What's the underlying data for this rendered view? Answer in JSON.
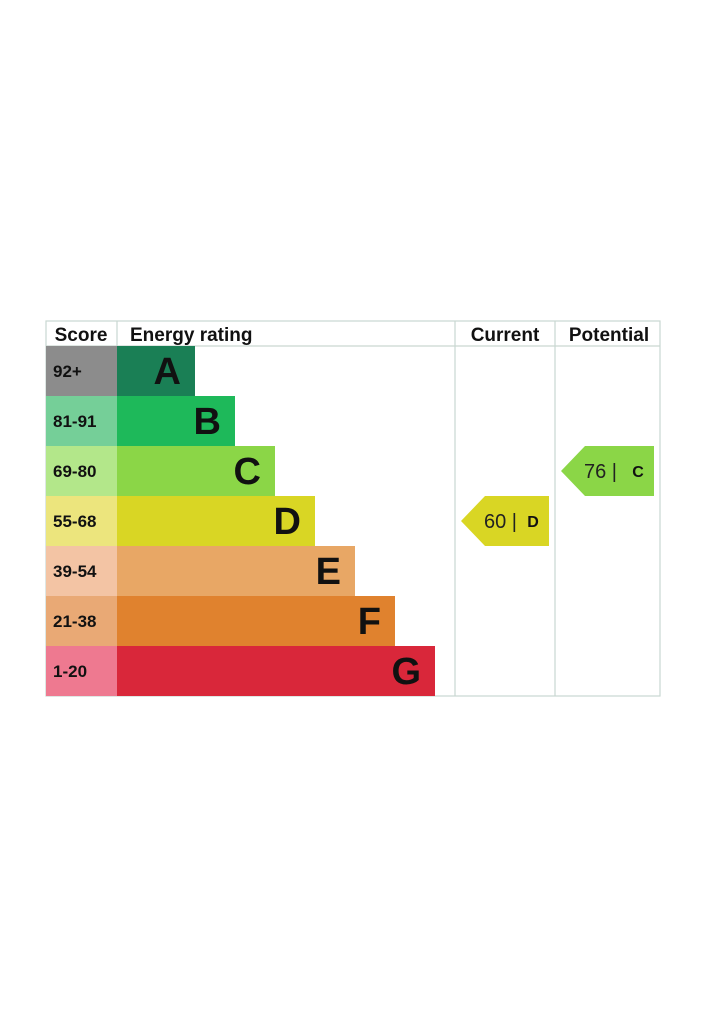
{
  "headers": {
    "score": "Score",
    "rating": "Energy rating",
    "current": "Current",
    "potential": "Potential"
  },
  "chart_data": {
    "type": "table",
    "bands": [
      {
        "letter": "A",
        "range": "92+",
        "color": "#1a7f55",
        "score_bg": "#8c8c8c"
      },
      {
        "letter": "B",
        "range": "81-91",
        "color": "#1eb95a",
        "score_bg": "#75cf98"
      },
      {
        "letter": "C",
        "range": "69-80",
        "color": "#8bd647",
        "score_bg": "#b3e78a"
      },
      {
        "letter": "D",
        "range": "55-68",
        "color": "#d9d624",
        "score_bg": "#ece57d"
      },
      {
        "letter": "E",
        "range": "39-54",
        "color": "#e8a765",
        "score_bg": "#f3c4a4"
      },
      {
        "letter": "F",
        "range": "21-38",
        "color": "#e0822e",
        "score_bg": "#e9a975"
      },
      {
        "letter": "G",
        "range": "1-20",
        "color": "#d9273a",
        "score_bg": "#ee7990"
      }
    ],
    "current": {
      "value": "60 |",
      "letter": "D",
      "color": "#d9d624"
    },
    "potential": {
      "value": "76 |",
      "letter": "C",
      "color": "#8bd647"
    }
  }
}
